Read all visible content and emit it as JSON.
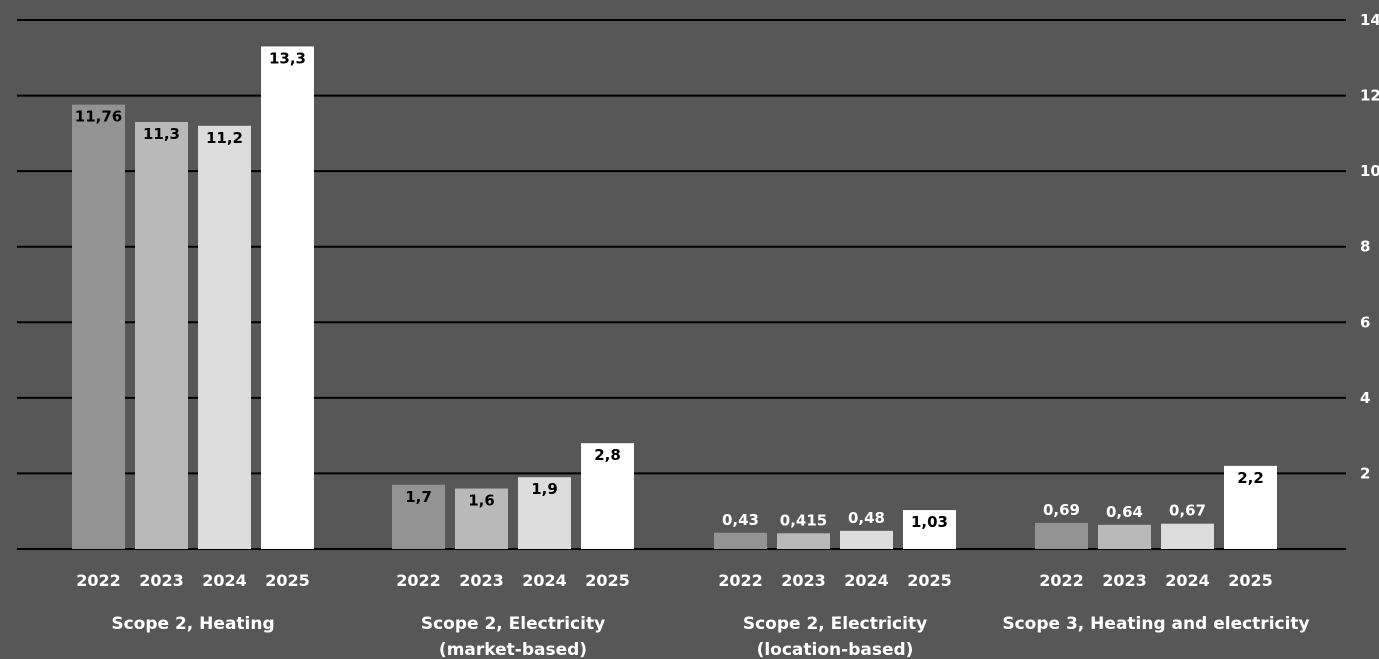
{
  "chart_data": {
    "type": "bar",
    "title": "",
    "xlabel": "",
    "ylabel": "",
    "ylim": [
      0,
      14
    ],
    "yticks": [
      2,
      4,
      6,
      8,
      10,
      12,
      14
    ],
    "y_axis_side": "right",
    "grid": true,
    "legend": "none",
    "groups": [
      {
        "label_lines": [
          "Scope 2, Heating"
        ],
        "years": [
          "2022",
          "2023",
          "2024",
          "2025"
        ],
        "values": [
          11.76,
          11.3,
          11.2,
          13.3
        ],
        "labels": [
          "11,76",
          "11,3",
          "11,2",
          "13,3"
        ]
      },
      {
        "label_lines": [
          "Scope 2, Electricity",
          "(market-based)"
        ],
        "years": [
          "2022",
          "2023",
          "2024",
          "2025"
        ],
        "values": [
          1.7,
          1.6,
          1.9,
          2.8
        ],
        "labels": [
          "1,7",
          "1,6",
          "1,9",
          "2,8"
        ]
      },
      {
        "label_lines": [
          "Scope 2, Electricity",
          "(location-based)"
        ],
        "years": [
          "2022",
          "2023",
          "2024",
          "2025"
        ],
        "values": [
          0.43,
          0.415,
          0.48,
          1.03
        ],
        "labels": [
          "0,43",
          "0,415",
          "0,48",
          "1,03"
        ]
      },
      {
        "label_lines": [
          "Scope 3, Heating and electricity"
        ],
        "years": [
          "2022",
          "2023",
          "2024",
          "2025"
        ],
        "values": [
          0.69,
          0.64,
          0.67,
          2.2
        ],
        "labels": [
          "0,69",
          "0,64",
          "0,67",
          "2,2"
        ]
      }
    ],
    "year_colors": [
      "#939393",
      "#b9b9b9",
      "#dcdcdc",
      "#ffffff"
    ],
    "gridline_color": "#000000",
    "background_color": "#575757"
  }
}
